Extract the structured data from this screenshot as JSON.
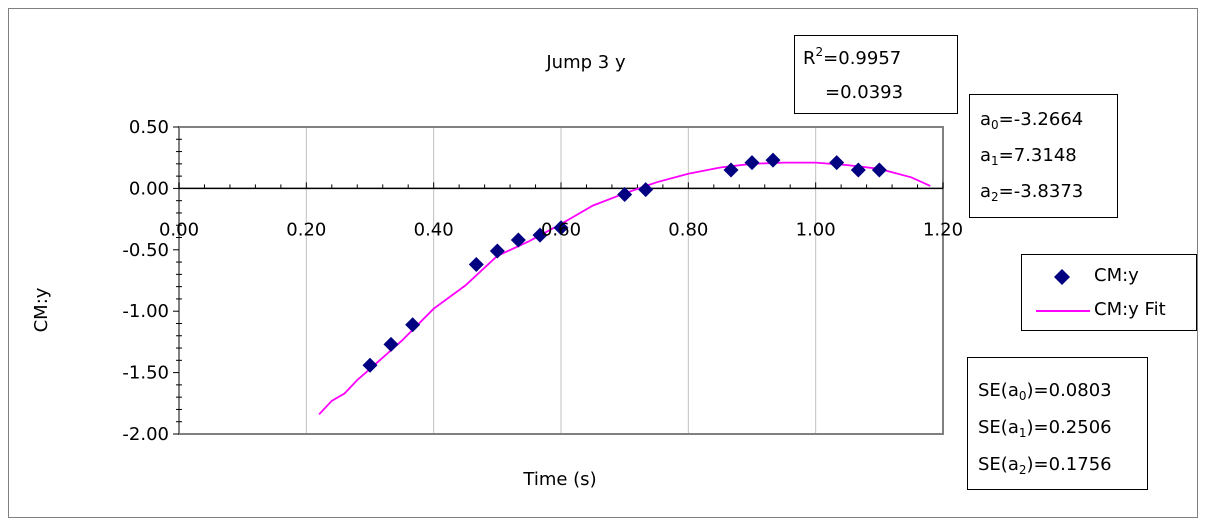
{
  "chart_data": {
    "type": "scatter",
    "title": "Jump 3 y",
    "xlabel": "Time (s)",
    "ylabel": "CM:y",
    "xlim": [
      0.0,
      1.2
    ],
    "ylim": [
      -2.0,
      0.5
    ],
    "xticks": [
      "0.00",
      "0.20",
      "0.40",
      "0.60",
      "0.80",
      "1.00",
      "1.20"
    ],
    "yticks": [
      "0.50",
      "0.00",
      "-0.50",
      "-1.00",
      "-1.50",
      "-2.00"
    ],
    "grid": "vertical",
    "legend_position": "right",
    "series": [
      {
        "name": "CM:y",
        "marker": "diamond",
        "color": "#000080",
        "x": [
          0.3,
          0.333,
          0.367,
          0.467,
          0.5,
          0.533,
          0.567,
          0.6,
          0.7,
          0.733,
          0.867,
          0.9,
          0.933,
          1.033,
          1.067,
          1.1
        ],
        "y": [
          -1.44,
          -1.27,
          -1.11,
          -0.62,
          -0.51,
          -0.42,
          -0.38,
          -0.32,
          -0.05,
          -0.01,
          0.15,
          0.21,
          0.23,
          0.21,
          0.15,
          0.15
        ]
      },
      {
        "name": "CM:y Fit",
        "line": true,
        "color": "#ff00ff",
        "x": [
          0.22,
          0.24,
          0.26,
          0.28,
          0.3,
          0.35,
          0.4,
          0.45,
          0.5,
          0.55,
          0.6,
          0.65,
          0.7,
          0.75,
          0.8,
          0.85,
          0.9,
          0.95,
          1.0,
          1.05,
          1.1,
          1.15,
          1.18
        ],
        "y": [
          -1.84,
          -1.73,
          -1.67,
          -1.56,
          -1.47,
          -1.24,
          -0.98,
          -0.79,
          -0.55,
          -0.43,
          -0.29,
          -0.14,
          -0.04,
          0.05,
          0.12,
          0.17,
          0.2,
          0.21,
          0.21,
          0.19,
          0.16,
          0.09,
          0.02
        ]
      }
    ],
    "annotations": {
      "r2": "=0.9957",
      "second": "=0.0393",
      "a0": "=-3.2664",
      "a1": "=7.3148",
      "a2": "=-3.8373",
      "se_a0": "=0.0803",
      "se_a1": "=0.2506",
      "se_a2": "=0.1756"
    }
  },
  "legend": {
    "marker_label": "CM:y",
    "fit_label": "CM:y Fit"
  },
  "colors": {
    "markers": "#000080",
    "fit_line": "#ff00ff",
    "grid": "#c0c0c0",
    "axes": "#808080"
  }
}
